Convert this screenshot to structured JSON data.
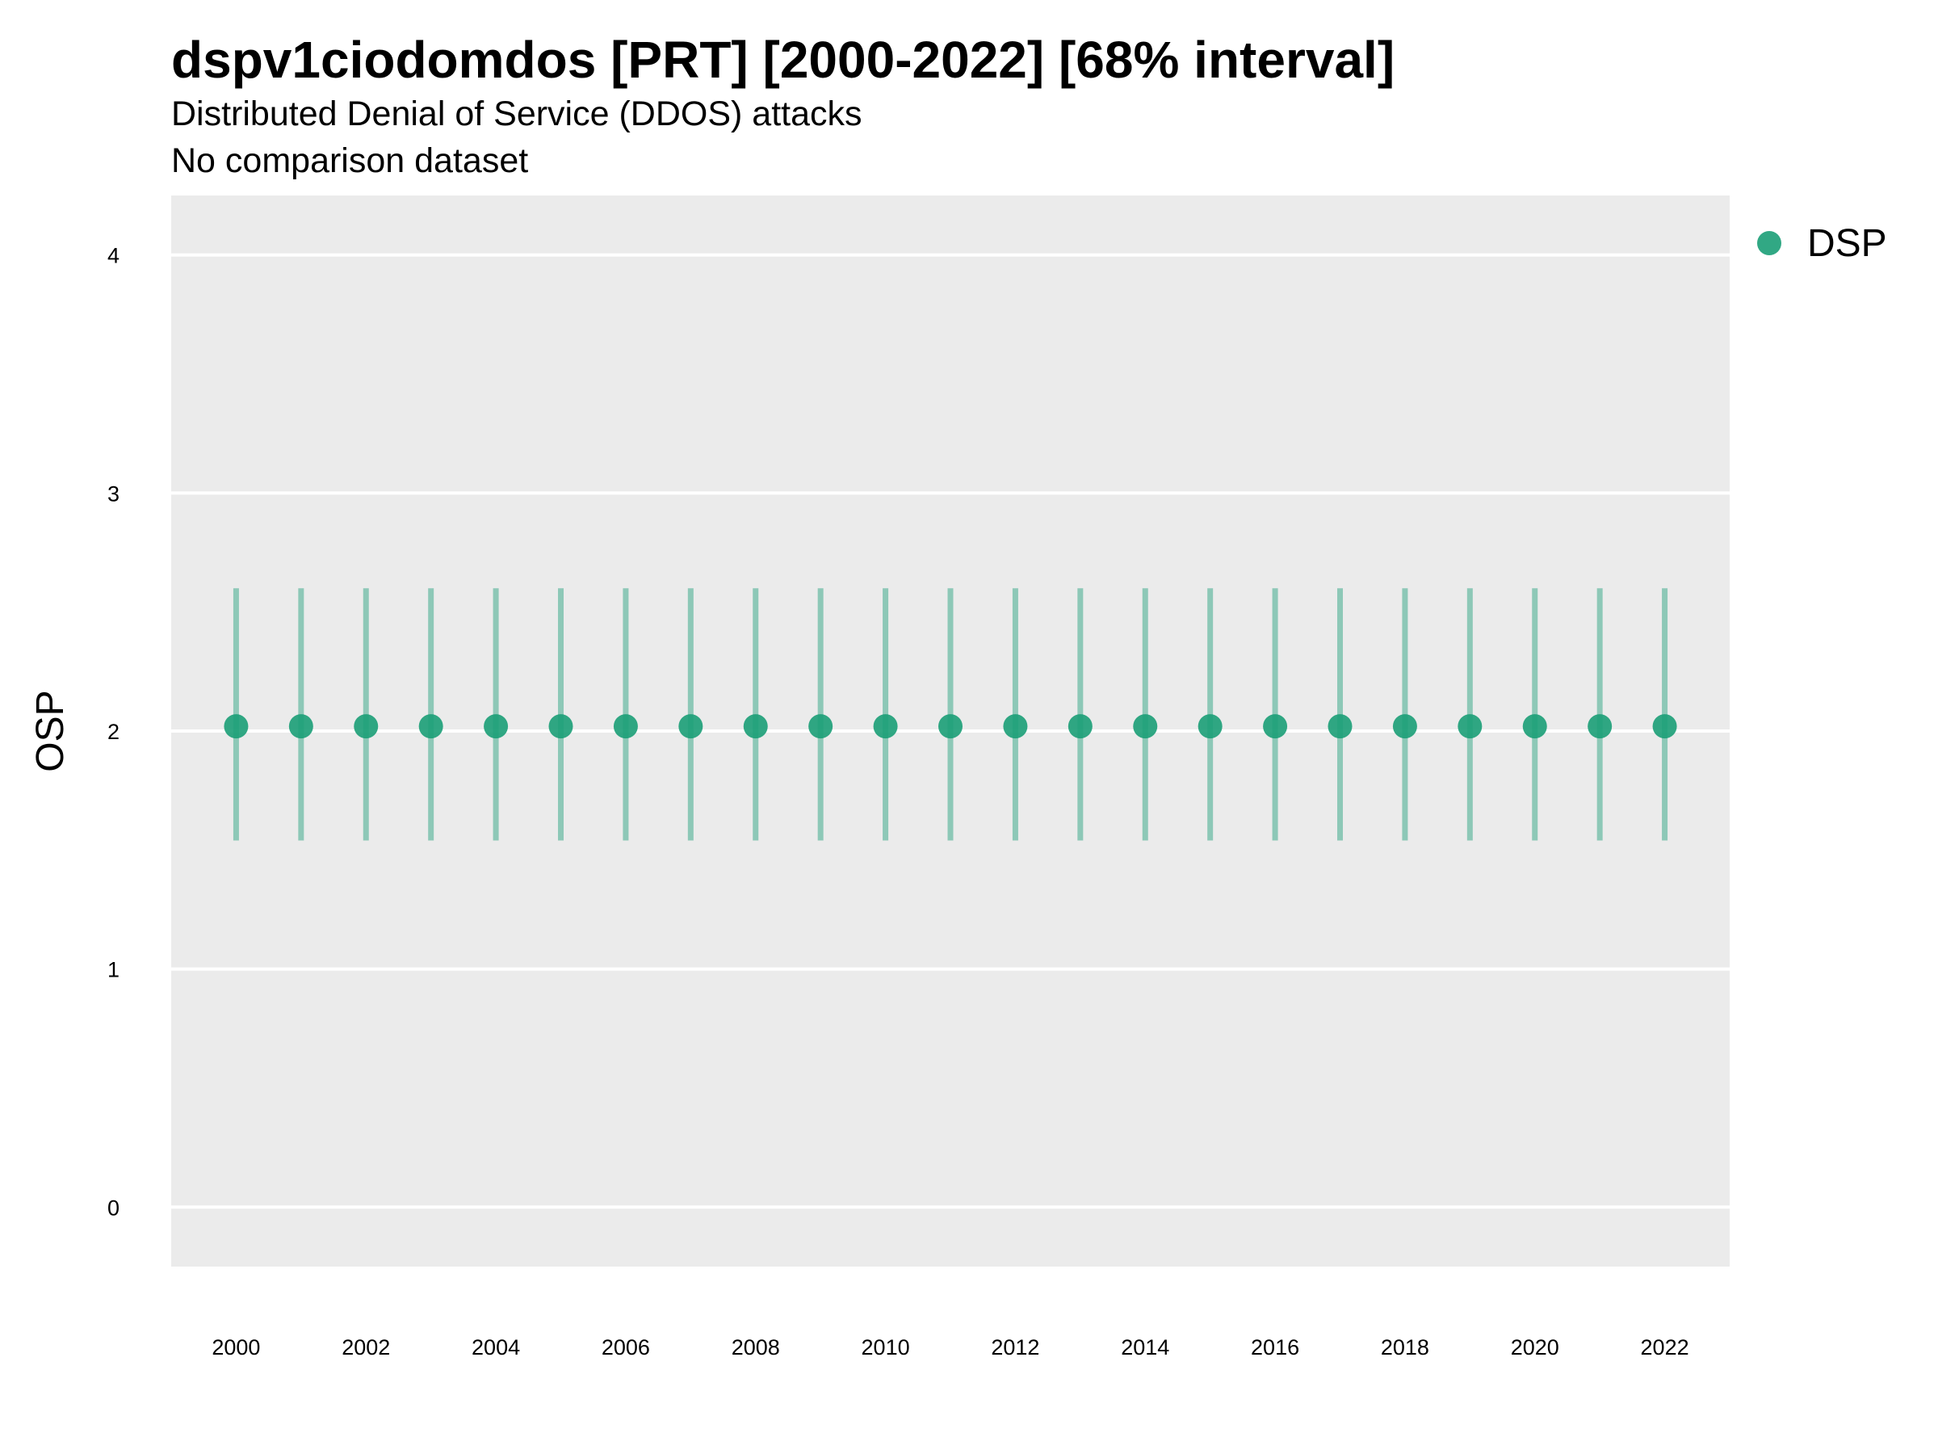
{
  "chart_data": {
    "type": "scatter",
    "title": "dspv1ciodomdos [PRT] [2000-2022] [68% interval]",
    "subtitle": "Distributed Denial of Service (DDOS) attacks",
    "caption_line": "No comparison dataset",
    "xlabel": "",
    "ylabel": "OSP",
    "x": [
      2000,
      2001,
      2002,
      2003,
      2004,
      2005,
      2006,
      2007,
      2008,
      2009,
      2010,
      2011,
      2012,
      2013,
      2014,
      2015,
      2016,
      2017,
      2018,
      2019,
      2020,
      2021,
      2022
    ],
    "x_ticks": [
      "2000",
      "2002",
      "2004",
      "2006",
      "2008",
      "2010",
      "2012",
      "2014",
      "2016",
      "2018",
      "2020",
      "2022"
    ],
    "y_ticks": [
      "0",
      "1",
      "2",
      "3",
      "4"
    ],
    "xlim": [
      1999,
      2023
    ],
    "ylim": [
      -0.25,
      4.25
    ],
    "grid": true,
    "legend_position": "right",
    "series": [
      {
        "name": "DSP",
        "color": "#1b9e77",
        "values": [
          2.02,
          2.02,
          2.02,
          2.02,
          2.02,
          2.02,
          2.02,
          2.02,
          2.02,
          2.02,
          2.02,
          2.02,
          2.02,
          2.02,
          2.02,
          2.02,
          2.02,
          2.02,
          2.02,
          2.02,
          2.02,
          2.02,
          2.02
        ],
        "lower": [
          1.54,
          1.54,
          1.54,
          1.54,
          1.54,
          1.54,
          1.54,
          1.54,
          1.54,
          1.54,
          1.54,
          1.54,
          1.54,
          1.54,
          1.54,
          1.54,
          1.54,
          1.54,
          1.54,
          1.54,
          1.54,
          1.54,
          1.54
        ],
        "upper": [
          2.6,
          2.6,
          2.6,
          2.6,
          2.6,
          2.6,
          2.6,
          2.6,
          2.6,
          2.6,
          2.6,
          2.6,
          2.6,
          2.6,
          2.6,
          2.6,
          2.6,
          2.6,
          2.6,
          2.6,
          2.6,
          2.6,
          2.6
        ]
      }
    ]
  },
  "colors": {
    "panel_background": "#ebebeb",
    "gridline": "#ffffff"
  }
}
